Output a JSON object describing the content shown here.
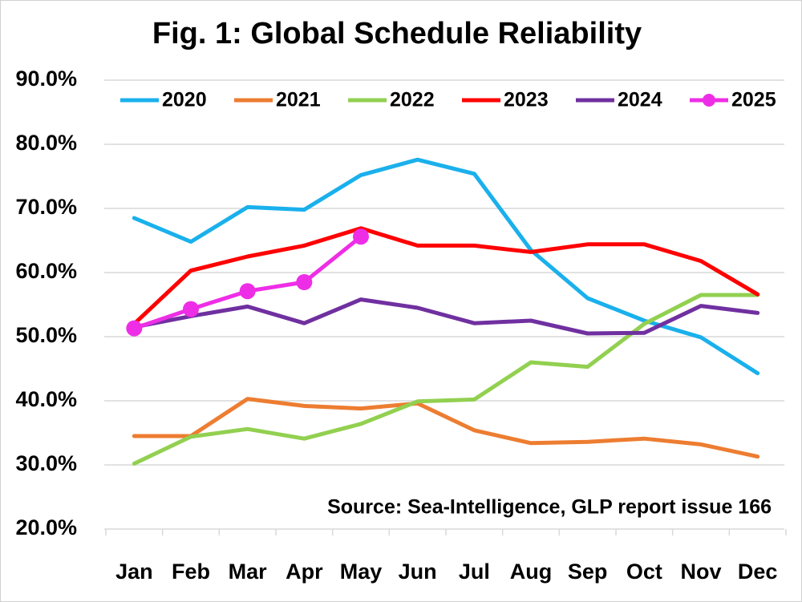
{
  "chart_data": {
    "type": "line",
    "title": "Fig. 1: Global Schedule Reliability",
    "annotation": "Source: Sea-Intelligence, GLP report issue 166",
    "categories": [
      "Jan",
      "Feb",
      "Mar",
      "Apr",
      "May",
      "Jun",
      "Jul",
      "Aug",
      "Sep",
      "Oct",
      "Nov",
      "Dec"
    ],
    "series": [
      {
        "name": "2020",
        "color": "#1ab0ec",
        "values": [
          68.5,
          64.8,
          70.2,
          69.8,
          75.2,
          77.6,
          75.4,
          63.5,
          56.0,
          52.5,
          49.9,
          44.3
        ]
      },
      {
        "name": "2021",
        "color": "#ed7d31",
        "values": [
          34.5,
          34.5,
          40.3,
          39.2,
          38.8,
          39.6,
          35.4,
          33.4,
          33.6,
          34.1,
          33.2,
          31.3
        ]
      },
      {
        "name": "2022",
        "color": "#92d050",
        "values": [
          30.2,
          34.4,
          35.6,
          34.1,
          36.4,
          39.9,
          40.2,
          46.0,
          45.3,
          52.0,
          56.5,
          56.5
        ]
      },
      {
        "name": "2023",
        "color": "#ff0000",
        "values": [
          52.0,
          60.3,
          62.5,
          64.2,
          66.9,
          64.2,
          64.2,
          63.2,
          64.4,
          64.4,
          61.8,
          56.6
        ]
      },
      {
        "name": "2024",
        "color": "#7030a0",
        "values": [
          51.5,
          53.2,
          54.7,
          52.1,
          55.8,
          54.5,
          52.1,
          52.5,
          50.5,
          50.6,
          54.8,
          53.7
        ]
      },
      {
        "name": "2025",
        "color": "#ee2ee6",
        "markers": true,
        "values": [
          51.3,
          54.3,
          57.1,
          58.5,
          65.6,
          null,
          null,
          null,
          null,
          null,
          null,
          null
        ]
      }
    ],
    "ylim": [
      20,
      90
    ],
    "yticks": [
      {
        "value": 20,
        "label": "20.0%"
      },
      {
        "value": 30,
        "label": "30.0%"
      },
      {
        "value": 40,
        "label": "40.0%"
      },
      {
        "value": 50,
        "label": "50.0%"
      },
      {
        "value": 60,
        "label": "60.0%"
      },
      {
        "value": 70,
        "label": "70.0%"
      },
      {
        "value": 80,
        "label": "80.0%"
      },
      {
        "value": 90,
        "label": "90.0%"
      }
    ],
    "grid": true,
    "legend": "top"
  }
}
